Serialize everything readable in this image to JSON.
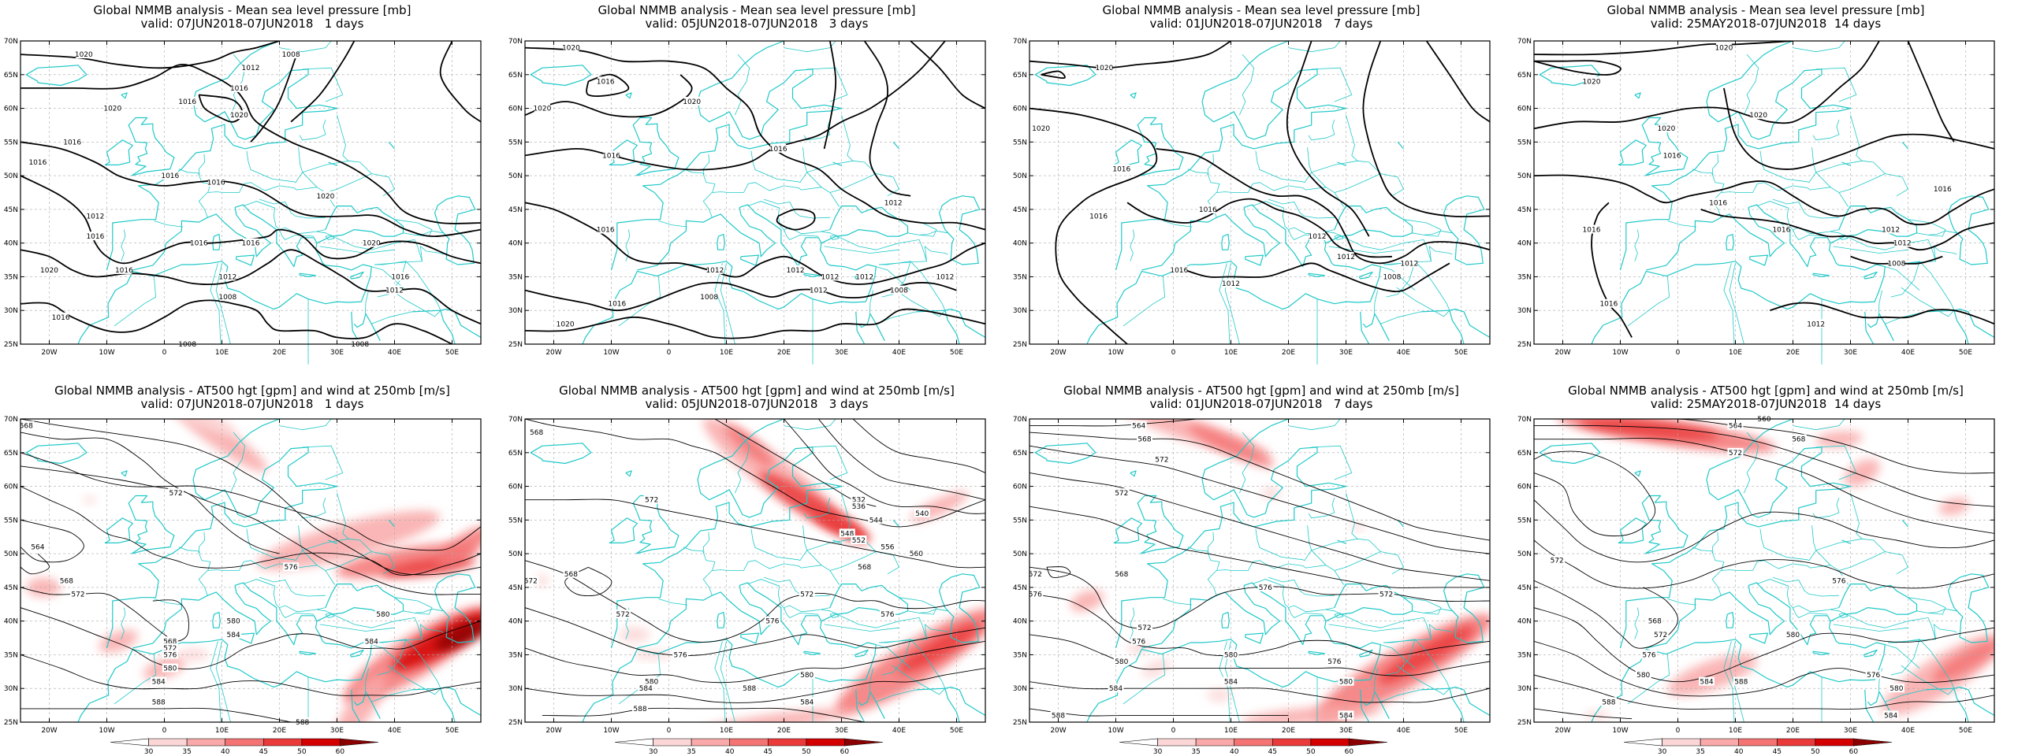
{
  "figure": {
    "columns": [
      {
        "valid": "valid: 07JUN2018-07JUN2018   1 days"
      },
      {
        "valid": "valid: 05JUN2018-07JUN2018   3 days"
      },
      {
        "valid": "valid: 01JUN2018-07JUN2018   7 days"
      },
      {
        "valid": "valid: 25MAY2018-07JUN2018  14 days"
      }
    ],
    "rows": [
      {
        "title": "Global NMMB analysis - Mean sea level pressure [mb]"
      },
      {
        "title": "Global NMMB analysis - AT500 hgt [gpm] and wind at 250mb [m/s]"
      }
    ],
    "lat_labels": [
      "70N",
      "65N",
      "60N",
      "55N",
      "50N",
      "45N",
      "40N",
      "35N",
      "30N",
      "25N"
    ],
    "lon_labels": [
      "20W",
      "10W",
      "0",
      "10E",
      "20E",
      "30E",
      "40E",
      "50E"
    ],
    "colorbar": {
      "labels": [
        "30",
        "35",
        "40",
        "45",
        "50",
        "60"
      ],
      "colors": [
        "#ffffff",
        "#fcd6d6",
        "#f9a9a9",
        "#f47474",
        "#ea3a3a",
        "#d40000",
        "#8b0000"
      ]
    },
    "colors": {
      "coast": "#20c8c8",
      "contour": "#000000",
      "grid": "#aaaaaa"
    }
  },
  "chart_data": [
    {
      "type": "heatmap",
      "title": "Global NMMB analysis - Mean sea level pressure [mb]",
      "subtitle": "valid: 07JUN2018-07JUN2018   1 days",
      "xlabel": "",
      "ylabel": "",
      "xlim": [
        -25,
        55
      ],
      "ylim": [
        25,
        70
      ],
      "xticks": [
        "20W",
        "10W",
        "0",
        "10E",
        "20E",
        "30E",
        "40E",
        "50E"
      ],
      "yticks": [
        "70N",
        "65N",
        "60N",
        "55N",
        "50N",
        "45N",
        "40N",
        "35N",
        "30N",
        "25N"
      ],
      "grid": true,
      "contour_labels": [
        {
          "lon": -14,
          "lat": 68,
          "v": "1020"
        },
        {
          "lon": 4,
          "lat": 61,
          "v": "1016"
        },
        {
          "lon": -9,
          "lat": 60,
          "v": "1020"
        },
        {
          "lon": 15,
          "lat": 66,
          "v": "1012"
        },
        {
          "lon": 22,
          "lat": 68,
          "v": "1008"
        },
        {
          "lon": 13,
          "lat": 63,
          "v": "1016"
        },
        {
          "lon": 13,
          "lat": 59,
          "v": "1020"
        },
        {
          "lon": -16,
          "lat": 55,
          "v": "1016"
        },
        {
          "lon": -22,
          "lat": 52,
          "v": "1016"
        },
        {
          "lon": 1,
          "lat": 50,
          "v": "1016"
        },
        {
          "lon": 9,
          "lat": 49,
          "v": "1016"
        },
        {
          "lon": -12,
          "lat": 44,
          "v": "1012"
        },
        {
          "lon": -12,
          "lat": 41,
          "v": "1016"
        },
        {
          "lon": -20,
          "lat": 36,
          "v": "1020"
        },
        {
          "lon": -7,
          "lat": 36,
          "v": "1016"
        },
        {
          "lon": 6,
          "lat": 40,
          "v": "1016"
        },
        {
          "lon": 15,
          "lat": 40,
          "v": "1016"
        },
        {
          "lon": 28,
          "lat": 47,
          "v": "1020"
        },
        {
          "lon": 36,
          "lat": 40,
          "v": "1020"
        },
        {
          "lon": 11,
          "lat": 35,
          "v": "1012"
        },
        {
          "lon": 11,
          "lat": 32,
          "v": "1008"
        },
        {
          "lon": 41,
          "lat": 35,
          "v": "1016"
        },
        {
          "lon": 40,
          "lat": 33,
          "v": "1012"
        },
        {
          "lon": -18,
          "lat": 29,
          "v": "1016"
        },
        {
          "lon": 4,
          "lat": 25,
          "v": "1008"
        },
        {
          "lon": 34,
          "lat": 25,
          "v": "1008"
        }
      ]
    },
    {
      "type": "heatmap",
      "title": "Global NMMB analysis - Mean sea level pressure [mb]",
      "subtitle": "valid: 05JUN2018-07JUN2018   3 days",
      "xlabel": "",
      "ylabel": "",
      "xlim": [
        -25,
        55
      ],
      "ylim": [
        25,
        70
      ],
      "xticks": [
        "20W",
        "10W",
        "0",
        "10E",
        "20E",
        "30E",
        "40E",
        "50E"
      ],
      "yticks": [
        "70N",
        "65N",
        "60N",
        "55N",
        "50N",
        "45N",
        "40N",
        "35N",
        "30N",
        "25N"
      ],
      "grid": true,
      "contour_labels": [
        {
          "lon": -17,
          "lat": 69,
          "v": "1020"
        },
        {
          "lon": -11,
          "lat": 64,
          "v": "1016"
        },
        {
          "lon": -22,
          "lat": 60,
          "v": "1020"
        },
        {
          "lon": 4,
          "lat": 61,
          "v": "1020"
        },
        {
          "lon": -10,
          "lat": 53,
          "v": "1016"
        },
        {
          "lon": 19,
          "lat": 54,
          "v": "1016"
        },
        {
          "lon": -11,
          "lat": 42,
          "v": "1016"
        },
        {
          "lon": 22,
          "lat": 36,
          "v": "1012"
        },
        {
          "lon": 28,
          "lat": 35,
          "v": "1012"
        },
        {
          "lon": 8,
          "lat": 36,
          "v": "1012"
        },
        {
          "lon": 26,
          "lat": 33,
          "v": "1012"
        },
        {
          "lon": 34,
          "lat": 35,
          "v": "1012"
        },
        {
          "lon": -9,
          "lat": 31,
          "v": "1016"
        },
        {
          "lon": 7,
          "lat": 32,
          "v": "1008"
        },
        {
          "lon": 48,
          "lat": 35,
          "v": "1012"
        },
        {
          "lon": 40,
          "lat": 33,
          "v": "1008"
        },
        {
          "lon": -18,
          "lat": 28,
          "v": "1020"
        },
        {
          "lon": 39,
          "lat": 46,
          "v": "1012"
        }
      ]
    },
    {
      "type": "heatmap",
      "title": "Global NMMB analysis - Mean sea level pressure [mb]",
      "subtitle": "valid: 01JUN2018-07JUN2018   7 days",
      "xlabel": "",
      "ylabel": "",
      "xlim": [
        -25,
        55
      ],
      "ylim": [
        25,
        70
      ],
      "xticks": [
        "20W",
        "10W",
        "0",
        "10E",
        "20E",
        "30E",
        "40E",
        "50E"
      ],
      "yticks": [
        "70N",
        "65N",
        "60N",
        "55N",
        "50N",
        "45N",
        "40N",
        "35N",
        "30N",
        "25N"
      ],
      "grid": true,
      "contour_labels": [
        {
          "lon": -12,
          "lat": 66,
          "v": "1020"
        },
        {
          "lon": -23,
          "lat": 57,
          "v": "1020"
        },
        {
          "lon": -9,
          "lat": 51,
          "v": "1016"
        },
        {
          "lon": -13,
          "lat": 44,
          "v": "1016"
        },
        {
          "lon": 6,
          "lat": 45,
          "v": "1016"
        },
        {
          "lon": 25,
          "lat": 41,
          "v": "1012"
        },
        {
          "lon": 1,
          "lat": 36,
          "v": "1016"
        },
        {
          "lon": 30,
          "lat": 38,
          "v": "1012"
        },
        {
          "lon": 10,
          "lat": 34,
          "v": "1012"
        },
        {
          "lon": 41,
          "lat": 37,
          "v": "1012"
        },
        {
          "lon": 38,
          "lat": 35,
          "v": "1008"
        }
      ]
    },
    {
      "type": "heatmap",
      "title": "Global NMMB analysis - Mean sea level pressure [mb]",
      "subtitle": "valid: 25MAY2018-07JUN2018  14 days",
      "xlabel": "",
      "ylabel": "",
      "xlim": [
        -25,
        55
      ],
      "ylim": [
        25,
        70
      ],
      "xticks": [
        "20W",
        "10W",
        "0",
        "10E",
        "20E",
        "30E",
        "40E",
        "50E"
      ],
      "yticks": [
        "70N",
        "65N",
        "60N",
        "55N",
        "50N",
        "45N",
        "40N",
        "35N",
        "30N",
        "25N"
      ],
      "grid": true,
      "contour_labels": [
        {
          "lon": 8,
          "lat": 69,
          "v": "1020"
        },
        {
          "lon": -15,
          "lat": 64,
          "v": "1020"
        },
        {
          "lon": -2,
          "lat": 57,
          "v": "1020"
        },
        {
          "lon": 14,
          "lat": 59,
          "v": "1020"
        },
        {
          "lon": -1,
          "lat": 53,
          "v": "1016"
        },
        {
          "lon": 7,
          "lat": 46,
          "v": "1016"
        },
        {
          "lon": 18,
          "lat": 42,
          "v": "1016"
        },
        {
          "lon": 46,
          "lat": 48,
          "v": "1016"
        },
        {
          "lon": 37,
          "lat": 42,
          "v": "1012"
        },
        {
          "lon": 39,
          "lat": 40,
          "v": "1012"
        },
        {
          "lon": -15,
          "lat": 42,
          "v": "1016"
        },
        {
          "lon": 38,
          "lat": 37,
          "v": "1008"
        },
        {
          "lon": -12,
          "lat": 31,
          "v": "1016"
        },
        {
          "lon": 24,
          "lat": 28,
          "v": "1012"
        }
      ]
    },
    {
      "type": "heatmap",
      "title": "Global NMMB analysis - AT500 hgt [gpm] and wind at 250mb [m/s]",
      "subtitle": "valid: 07JUN2018-07JUN2018   1 days",
      "xlabel": "",
      "ylabel": "",
      "xlim": [
        -25,
        55
      ],
      "ylim": [
        25,
        70
      ],
      "xticks": [
        "20W",
        "10W",
        "0",
        "10E",
        "20E",
        "30E",
        "40E",
        "50E"
      ],
      "yticks": [
        "70N",
        "65N",
        "60N",
        "55N",
        "50N",
        "45N",
        "40N",
        "35N",
        "30N",
        "25N"
      ],
      "grid": true,
      "colorbar_levels": [
        30,
        35,
        40,
        45,
        50,
        60
      ],
      "contour_labels": [
        {
          "lon": -24,
          "lat": 69,
          "v": "568"
        },
        {
          "lon": 2,
          "lat": 59,
          "v": "572"
        },
        {
          "lon": -22,
          "lat": 51,
          "v": "564"
        },
        {
          "lon": -17,
          "lat": 46,
          "v": "568"
        },
        {
          "lon": -15,
          "lat": 44,
          "v": "572"
        },
        {
          "lon": 1,
          "lat": 37,
          "v": "568"
        },
        {
          "lon": 1,
          "lat": 36,
          "v": "572"
        },
        {
          "lon": 1,
          "lat": 35,
          "v": "576"
        },
        {
          "lon": 1,
          "lat": 33,
          "v": "580"
        },
        {
          "lon": -1,
          "lat": 31,
          "v": "584"
        },
        {
          "lon": -1,
          "lat": 28,
          "v": "588"
        },
        {
          "lon": 22,
          "lat": 48,
          "v": "576"
        },
        {
          "lon": 12,
          "lat": 40,
          "v": "580"
        },
        {
          "lon": 12,
          "lat": 38,
          "v": "584"
        },
        {
          "lon": 38,
          "lat": 41,
          "v": "580"
        },
        {
          "lon": 36,
          "lat": 37,
          "v": "584"
        },
        {
          "lon": 24,
          "lat": 25,
          "v": "588"
        }
      ]
    },
    {
      "type": "heatmap",
      "title": "Global NMMB analysis - AT500 hgt [gpm] and wind at 250mb [m/s]",
      "subtitle": "valid: 05JUN2018-07JUN2018   3 days",
      "xlabel": "",
      "ylabel": "",
      "xlim": [
        -25,
        55
      ],
      "ylim": [
        25,
        70
      ],
      "xticks": [
        "20W",
        "10W",
        "0",
        "10E",
        "20E",
        "30E",
        "40E",
        "50E"
      ],
      "yticks": [
        "70N",
        "65N",
        "60N",
        "55N",
        "50N",
        "45N",
        "40N",
        "35N",
        "30N",
        "25N"
      ],
      "grid": true,
      "colorbar_levels": [
        30,
        35,
        40,
        45,
        50,
        60
      ],
      "contour_labels": [
        {
          "lon": -23,
          "lat": 68,
          "v": "568"
        },
        {
          "lon": -24,
          "lat": 46,
          "v": "572"
        },
        {
          "lon": -3,
          "lat": 58,
          "v": "572"
        },
        {
          "lon": -17,
          "lat": 47,
          "v": "568"
        },
        {
          "lon": -8,
          "lat": 41,
          "v": "572"
        },
        {
          "lon": 2,
          "lat": 35,
          "v": "576"
        },
        {
          "lon": -3,
          "lat": 31,
          "v": "580"
        },
        {
          "lon": -4,
          "lat": 30,
          "v": "584"
        },
        {
          "lon": -5,
          "lat": 27,
          "v": "588"
        },
        {
          "lon": 33,
          "lat": 58,
          "v": "532"
        },
        {
          "lon": 33,
          "lat": 57,
          "v": "536"
        },
        {
          "lon": 44,
          "lat": 56,
          "v": "540"
        },
        {
          "lon": 36,
          "lat": 55,
          "v": "544"
        },
        {
          "lon": 31,
          "lat": 53,
          "v": "548"
        },
        {
          "lon": 33,
          "lat": 52,
          "v": "552"
        },
        {
          "lon": 38,
          "lat": 51,
          "v": "556"
        },
        {
          "lon": 43,
          "lat": 50,
          "v": "560"
        },
        {
          "lon": 34,
          "lat": 48,
          "v": "568"
        },
        {
          "lon": 24,
          "lat": 44,
          "v": "572"
        },
        {
          "lon": 18,
          "lat": 40,
          "v": "576"
        },
        {
          "lon": 24,
          "lat": 32,
          "v": "580"
        },
        {
          "lon": 24,
          "lat": 28,
          "v": "584"
        },
        {
          "lon": 14,
          "lat": 30,
          "v": "588"
        },
        {
          "lon": 38,
          "lat": 41,
          "v": "576"
        }
      ]
    },
    {
      "type": "heatmap",
      "title": "Global NMMB analysis - AT500 hgt [gpm] and wind at 250mb [m/s]",
      "subtitle": "valid: 01JUN2018-07JUN2018   7 days",
      "xlabel": "",
      "ylabel": "",
      "xlim": [
        -25,
        55
      ],
      "ylim": [
        25,
        70
      ],
      "xticks": [
        "20W",
        "10W",
        "0",
        "10E",
        "20E",
        "30E",
        "40E",
        "50E"
      ],
      "yticks": [
        "70N",
        "65N",
        "60N",
        "55N",
        "50N",
        "45N",
        "40N",
        "35N",
        "30N",
        "25N"
      ],
      "grid": true,
      "colorbar_levels": [
        30,
        35,
        40,
        45,
        50,
        60
      ],
      "contour_labels": [
        {
          "lon": -6,
          "lat": 69,
          "v": "564"
        },
        {
          "lon": -5,
          "lat": 67,
          "v": "568"
        },
        {
          "lon": -2,
          "lat": 64,
          "v": "572"
        },
        {
          "lon": -9,
          "lat": 59,
          "v": "572"
        },
        {
          "lon": -24,
          "lat": 47,
          "v": "572"
        },
        {
          "lon": -24,
          "lat": 44,
          "v": "576"
        },
        {
          "lon": -9,
          "lat": 47,
          "v": "568"
        },
        {
          "lon": 16,
          "lat": 45,
          "v": "576"
        },
        {
          "lon": -5,
          "lat": 39,
          "v": "572"
        },
        {
          "lon": -6,
          "lat": 37,
          "v": "576"
        },
        {
          "lon": -9,
          "lat": 34,
          "v": "580"
        },
        {
          "lon": -10,
          "lat": 30,
          "v": "584"
        },
        {
          "lon": -20,
          "lat": 26,
          "v": "588"
        },
        {
          "lon": 10,
          "lat": 35,
          "v": "580"
        },
        {
          "lon": 10,
          "lat": 31,
          "v": "584"
        },
        {
          "lon": 37,
          "lat": 44,
          "v": "572"
        },
        {
          "lon": 28,
          "lat": 34,
          "v": "576"
        },
        {
          "lon": 30,
          "lat": 31,
          "v": "580"
        },
        {
          "lon": 30,
          "lat": 26,
          "v": "584"
        }
      ]
    },
    {
      "type": "heatmap",
      "title": "Global NMMB analysis - AT500 hgt [gpm] and wind at 250mb [m/s]",
      "subtitle": "valid: 25MAY2018-07JUN2018  14 days",
      "xlabel": "",
      "ylabel": "",
      "xlim": [
        -25,
        55
      ],
      "ylim": [
        25,
        70
      ],
      "xticks": [
        "20W",
        "10W",
        "0",
        "10E",
        "20E",
        "30E",
        "40E",
        "50E"
      ],
      "yticks": [
        "70N",
        "65N",
        "60N",
        "55N",
        "50N",
        "45N",
        "40N",
        "35N",
        "30N",
        "25N"
      ],
      "grid": true,
      "colorbar_levels": [
        30,
        35,
        40,
        45,
        50,
        60
      ],
      "contour_labels": [
        {
          "lon": 15,
          "lat": 70,
          "v": "560"
        },
        {
          "lon": 10,
          "lat": 69,
          "v": "564"
        },
        {
          "lon": 21,
          "lat": 67,
          "v": "568"
        },
        {
          "lon": 10,
          "lat": 65,
          "v": "572"
        },
        {
          "lon": -21,
          "lat": 49,
          "v": "572"
        },
        {
          "lon": 28,
          "lat": 46,
          "v": "576"
        },
        {
          "lon": -4,
          "lat": 40,
          "v": "568"
        },
        {
          "lon": -3,
          "lat": 38,
          "v": "572"
        },
        {
          "lon": -5,
          "lat": 35,
          "v": "576"
        },
        {
          "lon": -6,
          "lat": 32,
          "v": "580"
        },
        {
          "lon": 5,
          "lat": 31,
          "v": "584"
        },
        {
          "lon": -12,
          "lat": 28,
          "v": "588"
        },
        {
          "lon": 20,
          "lat": 38,
          "v": "580"
        },
        {
          "lon": 11,
          "lat": 31,
          "v": "588"
        },
        {
          "lon": 34,
          "lat": 32,
          "v": "576"
        },
        {
          "lon": 38,
          "lat": 30,
          "v": "580"
        },
        {
          "lon": 37,
          "lat": 26,
          "v": "584"
        }
      ]
    }
  ]
}
